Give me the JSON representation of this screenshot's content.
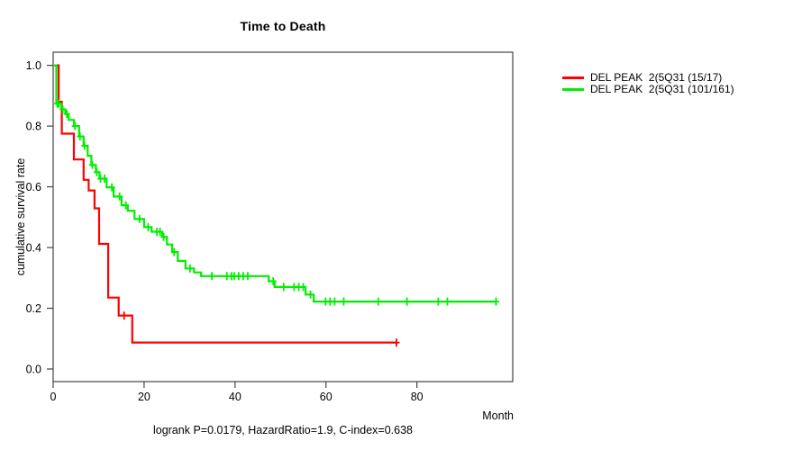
{
  "title": "Time to Death",
  "y_axis_label": "cumulative survival rate",
  "x_axis_label": "Month",
  "footer": "logrank P=0.0179, HazardRatio=1.9, C-index=0.638",
  "colors": {
    "series_red": "#ff0000",
    "series_green": "#00ee00",
    "axis": "#444444",
    "text": "#000000"
  },
  "legend": {
    "items": [
      {
        "label": "DEL PEAK  2(5Q31 (15/17)",
        "color": "#ff0000"
      },
      {
        "label": "DEL PEAK  2(5Q31 (101/161)",
        "color": "#00ee00"
      }
    ]
  },
  "chart_data": {
    "type": "line",
    "subtype": "kaplan-meier-step",
    "title": "Time to Death",
    "xlabel": "Month",
    "ylabel": "cumulative survival rate",
    "xlim": [
      0,
      101
    ],
    "ylim": [
      0,
      1.0
    ],
    "xticks": [
      0,
      20,
      40,
      60,
      80
    ],
    "xtick_labels": [
      "0",
      "20",
      "40",
      "60",
      "80"
    ],
    "yticks": [
      0.0,
      0.2,
      0.4,
      0.6,
      0.8,
      1.0
    ],
    "ytick_labels": [
      "0.0",
      "0.2",
      "0.4",
      "0.6",
      "0.8",
      "1.0"
    ],
    "grid": false,
    "legend_position": "top-right-outside",
    "annotation": "logrank P=0.0179, HazardRatio=1.9, C-index=0.638",
    "series": [
      {
        "name": "DEL PEAK  2(5Q31 (15/17)",
        "color": "#ff0000",
        "points": [
          [
            0,
            1.0
          ],
          [
            1.2,
            0.88
          ],
          [
            1.9,
            0.775
          ],
          [
            4.55,
            0.69
          ],
          [
            6.7,
            0.623
          ],
          [
            7.8,
            0.588
          ],
          [
            9.1,
            0.529
          ],
          [
            10.1,
            0.412
          ],
          [
            12.1,
            0.235
          ],
          [
            14.4,
            0.176
          ],
          [
            17.4,
            0.087
          ],
          [
            75.5,
            0.087
          ]
        ],
        "censors": [
          [
            15.6,
            0.176
          ],
          [
            75.5,
            0.087
          ]
        ]
      },
      {
        "name": "DEL PEAK  2(5Q31 (101/161)",
        "color": "#00ee00",
        "points": [
          [
            0,
            1.0
          ],
          [
            0.7,
            0.874
          ],
          [
            1.8,
            0.855
          ],
          [
            2.7,
            0.84
          ],
          [
            3.4,
            0.82
          ],
          [
            4.6,
            0.8
          ],
          [
            5.7,
            0.766
          ],
          [
            6.7,
            0.735
          ],
          [
            7.6,
            0.702
          ],
          [
            8.4,
            0.672
          ],
          [
            9.4,
            0.648
          ],
          [
            10.2,
            0.627
          ],
          [
            11.75,
            0.598
          ],
          [
            13.3,
            0.568
          ],
          [
            15.05,
            0.539
          ],
          [
            16.4,
            0.521
          ],
          [
            17.9,
            0.494
          ],
          [
            20.0,
            0.467
          ],
          [
            21.65,
            0.452
          ],
          [
            24.0,
            0.435
          ],
          [
            25.0,
            0.41
          ],
          [
            26.15,
            0.385
          ],
          [
            27.4,
            0.356
          ],
          [
            29.1,
            0.331
          ],
          [
            31.0,
            0.318
          ],
          [
            32.55,
            0.306
          ],
          [
            47.4,
            0.289
          ],
          [
            48.7,
            0.27
          ],
          [
            55.5,
            0.245
          ],
          [
            57.3,
            0.222
          ],
          [
            97.4,
            0.222
          ]
        ],
        "censors": [
          [
            0.9,
            0.874
          ],
          [
            1.2,
            0.874
          ],
          [
            2.1,
            0.855
          ],
          [
            3.0,
            0.84
          ],
          [
            4.8,
            0.8
          ],
          [
            5.9,
            0.766
          ],
          [
            6.9,
            0.735
          ],
          [
            8.6,
            0.672
          ],
          [
            9.6,
            0.648
          ],
          [
            10.4,
            0.627
          ],
          [
            11.3,
            0.627
          ],
          [
            12.9,
            0.598
          ],
          [
            14.6,
            0.568
          ],
          [
            16.0,
            0.539
          ],
          [
            19.0,
            0.494
          ],
          [
            20.9,
            0.467
          ],
          [
            22.8,
            0.452
          ],
          [
            23.5,
            0.452
          ],
          [
            24.3,
            0.435
          ],
          [
            26.6,
            0.385
          ],
          [
            30.1,
            0.331
          ],
          [
            34.9,
            0.306
          ],
          [
            38.2,
            0.306
          ],
          [
            39.2,
            0.306
          ],
          [
            39.8,
            0.306
          ],
          [
            40.8,
            0.306
          ],
          [
            41.8,
            0.306
          ],
          [
            42.8,
            0.306
          ],
          [
            48.4,
            0.289
          ],
          [
            50.7,
            0.27
          ],
          [
            53.0,
            0.27
          ],
          [
            54.0,
            0.27
          ],
          [
            55.0,
            0.27
          ],
          [
            56.6,
            0.245
          ],
          [
            59.9,
            0.222
          ],
          [
            60.9,
            0.222
          ],
          [
            61.9,
            0.222
          ],
          [
            63.9,
            0.222
          ],
          [
            71.5,
            0.222
          ],
          [
            77.8,
            0.222
          ],
          [
            84.7,
            0.222
          ],
          [
            86.7,
            0.222
          ],
          [
            97.4,
            0.222
          ]
        ]
      }
    ]
  }
}
